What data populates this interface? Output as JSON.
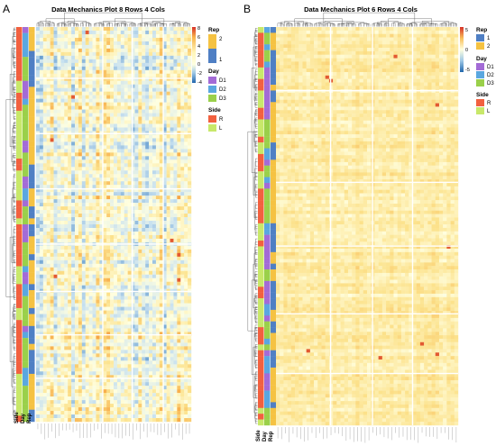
{
  "chart_data": [
    {
      "type": "heatmap",
      "panel": "A",
      "title": "Data Mechanics Plot 8 Rows 4 Cols",
      "row_blocks": 8,
      "col_blocks": 4,
      "annotation_tracks": [
        "Rep",
        "Day",
        "Side"
      ],
      "color_scale": {
        "min": -4,
        "max": 8,
        "ticks": [
          "8",
          "6",
          "4",
          "2",
          "0",
          "-2",
          "-4"
        ],
        "low_color": "#2166ac",
        "mid_color": "#ffffe0",
        "high_color": "#d73027"
      },
      "legends": [
        {
          "title": "Rep",
          "entries": [
            {
              "label": "2",
              "color": "#f5c242"
            },
            {
              "label": "1",
              "color": "#4f7fc4"
            }
          ]
        },
        {
          "title": "Day",
          "entries": [
            {
              "label": "D1",
              "color": "#a36bd6"
            },
            {
              "label": "D2",
              "color": "#5aa7e0"
            },
            {
              "label": "D3",
              "color": "#9ad04a"
            }
          ]
        },
        {
          "title": "Side",
          "entries": [
            {
              "label": "R",
              "color": "#f2603f"
            },
            {
              "label": "L",
              "color": "#c8e86a"
            }
          ]
        }
      ]
    },
    {
      "type": "heatmap",
      "panel": "B",
      "title": "Data Mechanics Plot 6 Rows 4 Cols",
      "row_blocks": 6,
      "col_blocks": 4,
      "annotation_tracks": [
        "Rep",
        "Day",
        "Side"
      ],
      "color_scale": {
        "min": -5,
        "max": 5,
        "ticks": [
          "5",
          "0",
          "-5"
        ],
        "low_color": "#2166ac",
        "mid_color": "#ffffe0",
        "high_color": "#d73027"
      },
      "legends": [
        {
          "title": "Rep",
          "entries": [
            {
              "label": "1",
              "color": "#4f7fc4"
            },
            {
              "label": "2",
              "color": "#f5c242"
            }
          ]
        },
        {
          "title": "Day",
          "entries": [
            {
              "label": "D1",
              "color": "#a36bd6"
            },
            {
              "label": "D2",
              "color": "#5aa7e0"
            },
            {
              "label": "D3",
              "color": "#9ad04a"
            }
          ]
        },
        {
          "title": "Side",
          "entries": [
            {
              "label": "R",
              "color": "#f2603f"
            },
            {
              "label": "L",
              "color": "#c8e86a"
            }
          ]
        }
      ]
    }
  ]
}
